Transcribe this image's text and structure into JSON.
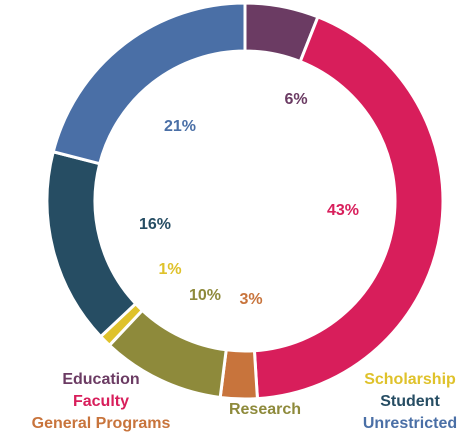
{
  "chart_data": {
    "type": "pie",
    "categories": [
      "Education",
      "Faculty",
      "General Programs",
      "Research",
      "Scholarship",
      "Student",
      "Unrestricted"
    ],
    "values": [
      6,
      43,
      3,
      10,
      1,
      16,
      21
    ],
    "value_labels": [
      "6%",
      "43%",
      "3%",
      "10%",
      "1%",
      "16%",
      "21%"
    ],
    "colors": [
      "#6b3b63",
      "#d81e5b",
      "#c8743c",
      "#8e8a3b",
      "#dfc22b",
      "#264d63",
      "#4a6fa6"
    ],
    "legend": "bottom"
  }
}
